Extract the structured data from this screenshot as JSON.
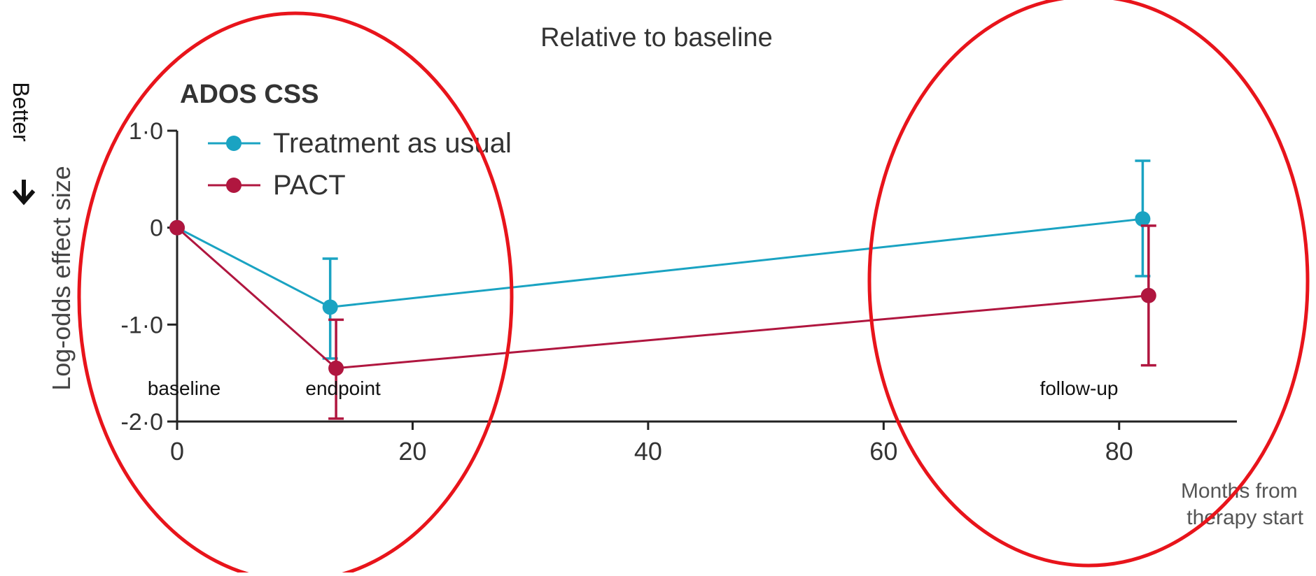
{
  "chart_data": {
    "type": "line",
    "title": "Relative to baseline",
    "subtitle": "ADOS CSS",
    "xlabel": "Months from therapy start",
    "ylabel": "Log-odds effect size",
    "xlim": [
      0,
      90
    ],
    "ylim": [
      -2.0,
      1.0
    ],
    "x_ticks": [
      {
        "value": 0,
        "label": "0"
      },
      {
        "value": 20,
        "label": "20"
      },
      {
        "value": 40,
        "label": "40"
      },
      {
        "value": 60,
        "label": "60"
      },
      {
        "value": 80,
        "label": "80"
      }
    ],
    "y_ticks": [
      {
        "value": 1.0,
        "label": "1·0"
      },
      {
        "value": 0,
        "label": "0"
      },
      {
        "value": -1.0,
        "label": "-1·0"
      },
      {
        "value": -2.0,
        "label": "-2·0"
      }
    ],
    "grid": false,
    "legend": "top-left",
    "series": [
      {
        "name": "Treatment as usual",
        "color": "#1aa3c2",
        "points": [
          {
            "x": 0,
            "y": 0
          },
          {
            "x": 13,
            "y": -0.82,
            "low": -1.35,
            "high": -0.32
          },
          {
            "x": 82,
            "y": 0.09,
            "low": -0.5,
            "high": 0.69
          }
        ]
      },
      {
        "name": "PACT",
        "color": "#b0163f",
        "points": [
          {
            "x": 0,
            "y": 0
          },
          {
            "x": 13.5,
            "y": -1.45,
            "low": -1.97,
            "high": -0.95
          },
          {
            "x": 82.5,
            "y": -0.7,
            "low": -1.42,
            "high": 0.02
          }
        ]
      }
    ],
    "annotations": [
      {
        "text": "baseline",
        "x": 0
      },
      {
        "text": "endpoint",
        "x": 13.5
      },
      {
        "text": "follow-up",
        "x": 76
      }
    ],
    "side_label": "Better",
    "side_arrow": "down-arrow-icon",
    "highlight_circles": [
      {
        "name": "highlight-circle-left",
        "color": "#e8141b"
      },
      {
        "name": "highlight-circle-right",
        "color": "#e8141b"
      }
    ]
  }
}
